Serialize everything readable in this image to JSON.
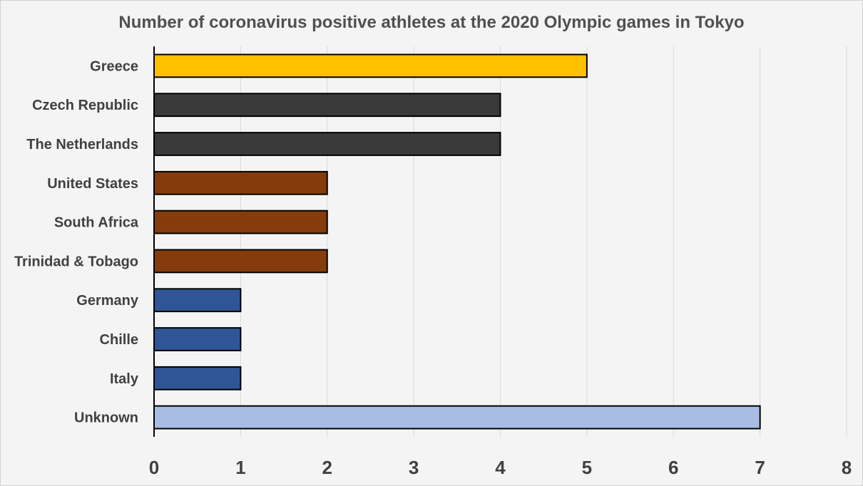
{
  "chart_data": {
    "type": "bar",
    "orientation": "horizontal",
    "title": "Number of coronavirus positive athletes at the 2020 Olympic games in Tokyo",
    "xlabel": "",
    "ylabel": "",
    "categories": [
      "Greece",
      "Czech Republic",
      "The Netherlands",
      "United States",
      "South Africa",
      "Trinidad & Tobago",
      "Germany",
      "Chille",
      "Italy",
      "Unknown"
    ],
    "values": [
      5,
      4,
      4,
      2,
      2,
      2,
      1,
      1,
      1,
      7
    ],
    "colors": [
      "#ffc000",
      "#3a3a3a",
      "#3a3a3a",
      "#843c0c",
      "#843c0c",
      "#843c0c",
      "#2f5597",
      "#2f5597",
      "#2f5597",
      "#a9bce3"
    ],
    "xlim": [
      0,
      8
    ],
    "xticks": [
      "0",
      "1",
      "2",
      "3",
      "4",
      "5",
      "6",
      "7",
      "8"
    ],
    "grid": "vertical",
    "legend": "none"
  }
}
